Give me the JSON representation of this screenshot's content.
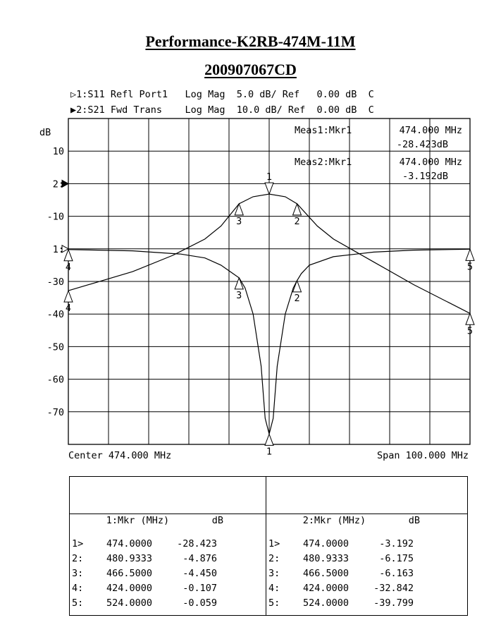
{
  "title": "Performance-K2RB-474M-11M",
  "subtitle": "200907067CD",
  "header": {
    "line1": "▷1:S11 Refl Port1   Log Mag  5.0 dB/ Ref   0.00 dB  C",
    "line2": "▶2:S21 Fwd Trans    Log Mag  10.0 dB/ Ref  0.00 dB  C"
  },
  "footer": {
    "center": "Center 474.000 MHz",
    "span": "Span 100.000 MHz"
  },
  "chart_data": {
    "type": "line",
    "ylabel": "dB",
    "x_range_mhz": [
      424,
      524
    ],
    "y_range_db": [
      -80,
      20
    ],
    "y_ticks": [
      "10",
      "2:",
      "-10",
      "1:",
      "-30",
      "-40",
      "-50",
      "-60",
      "-70"
    ],
    "grid": true,
    "meas1": {
      "label": "Meas1:Mkr1",
      "freq": "474.000 MHz",
      "value": "-28.423dB"
    },
    "meas2": {
      "label": "Meas2:Mkr1",
      "freq": "474.000 MHz",
      "value": "-3.192dB"
    },
    "series": [
      {
        "name": "S11",
        "x": [
          424,
          440,
          452,
          458,
          462,
          465,
          466.5,
          468,
          470,
          472,
          473,
          474,
          475,
          476,
          478,
          480,
          480.9333,
          482,
          484,
          490,
          500,
          510,
          524
        ],
        "y": [
          -0.107,
          -0.3,
          -0.8,
          -1.4,
          -2.5,
          -3.8,
          -4.45,
          -6.0,
          -10.0,
          -18.0,
          -26.0,
          -28.423,
          -26.0,
          -18.0,
          -10.0,
          -6.0,
          -4.876,
          -3.8,
          -2.5,
          -1.2,
          -0.5,
          -0.2,
          -0.059
        ]
      },
      {
        "name": "S21",
        "x": [
          424,
          440,
          450,
          458,
          462,
          466.5,
          470,
          474,
          478,
          480.9333,
          486,
          490,
          500,
          510,
          524
        ],
        "y": [
          -32.842,
          -27.0,
          -22.0,
          -17.0,
          -13.0,
          -6.163,
          -4.0,
          -3.192,
          -4.0,
          -6.175,
          -13.0,
          -17.0,
          -24.0,
          -31.0,
          -39.799
        ]
      }
    ],
    "markers_trace1": [
      {
        "id": "1",
        "freq": "474.0000",
        "db": "-28.423"
      },
      {
        "id": "2",
        "freq": "480.9333",
        "db": "-4.876"
      },
      {
        "id": "3",
        "freq": "466.5000",
        "db": "-4.450"
      },
      {
        "id": "4",
        "freq": "424.0000",
        "db": "-0.107"
      },
      {
        "id": "5",
        "freq": "524.0000",
        "db": "-0.059"
      }
    ],
    "markers_trace2": [
      {
        "id": "1",
        "freq": "474.0000",
        "db": "-3.192"
      },
      {
        "id": "2",
        "freq": "480.9333",
        "db": "-6.175"
      },
      {
        "id": "3",
        "freq": "466.5000",
        "db": "-6.163"
      },
      {
        "id": "4",
        "freq": "424.0000",
        "db": "-32.842"
      },
      {
        "id": "5",
        "freq": "524.0000",
        "db": "-39.799"
      }
    ]
  },
  "table": {
    "left_header_a": "1:Mkr (MHz)",
    "left_header_b": "dB",
    "right_header_a": "2:Mkr (MHz)",
    "right_header_b": "dB",
    "left_rows": [
      {
        "m": "1>",
        "f": "474.0000",
        "v": "-28.423"
      },
      {
        "m": "2:",
        "f": "480.9333",
        "v": "-4.876"
      },
      {
        "m": "3:",
        "f": "466.5000",
        "v": "-4.450"
      },
      {
        "m": "4:",
        "f": "424.0000",
        "v": "-0.107"
      },
      {
        "m": "5:",
        "f": "524.0000",
        "v": "-0.059"
      }
    ],
    "right_rows": [
      {
        "m": "1>",
        "f": "474.0000",
        "v": "-3.192"
      },
      {
        "m": "2:",
        "f": "480.9333",
        "v": "-6.175"
      },
      {
        "m": "3:",
        "f": "466.5000",
        "v": "-6.163"
      },
      {
        "m": "4:",
        "f": "424.0000",
        "v": "-32.842"
      },
      {
        "m": "5:",
        "f": "524.0000",
        "v": "-39.799"
      }
    ]
  }
}
